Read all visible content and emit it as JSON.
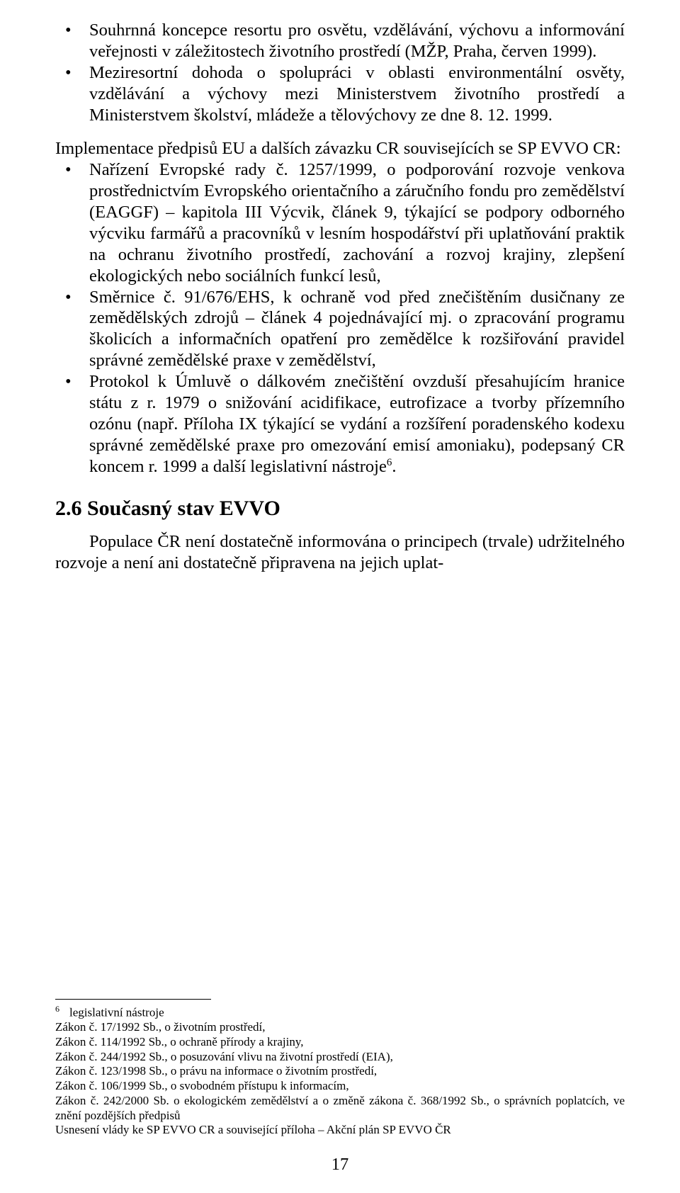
{
  "top_bullets": [
    "Souhrnná koncepce resortu pro osvětu, vzdělávání, výchovu a informování veřejnosti v záležitostech životního prostředí (MŽP, Praha, červen 1999).",
    "Meziresortní dohoda o spolupráci v oblasti environmentální osvěty, vzdělávání a výchovy mezi Ministerstvem životního prostředí a Ministerstvem školství, mládeže a tělovýchovy ze dne 8. 12. 1999."
  ],
  "intro_para": "Implementace předpisů EU a dalších závazku CR souvisejících se SP EVVO CR:",
  "eu_bullets": {
    "b1": "Nařízení Evropské rady č. 1257/1999, o podporování rozvoje venkova prostřednictvím Evropského orientačního a záručního fondu pro zemědělství (EAGGF) – kapitola III Výcvik, článek 9, týkající se podpory odborného výcviku farmářů a pracovníků v lesním hospodářství při uplatňování praktik na ochranu životního prostředí, zachování a rozvoj krajiny, zlepšení ekologických nebo sociálních funkcí lesů,",
    "b2": "Směrnice č. 91/676/EHS, k ochraně vod před znečištěním dusičnany ze zemědělských zdrojů – článek 4 pojednávající mj. o zpracování programu školicích a informačních opatření pro zemědělce k rozšiřování pravidel správné zemědělské praxe v zemědělství,",
    "b3_part1": "Protokol k Úmluvě o dálkovém znečištění ovzduší přesahujícím hranice státu z r. 1979 o snižování acidifikace, eutrofizace a tvorby přízemního ozónu (např. Příloha IX týkající se vydání a rozšíření poradenského kodexu správné zemědělské praxe pro omezování emisí amoniaku), podepsaný CR koncem r. 1999 a další legislativní nástroje",
    "b3_sup": "6",
    "b3_part2": "."
  },
  "section_heading": "2.6 Současný stav EVVO",
  "body_para": "Populace ČR není dostatečně informována o principech (trvale) udržitelného rozvoje a není ani dostatečně připravena na jejich uplat-",
  "footnote": {
    "marker": "6",
    "label": "legislativní nástroje",
    "lines": [
      "Zákon č. 17/1992 Sb., o životním prostředí,",
      "Zákon č. 114/1992 Sb., o ochraně přírody a krajiny,",
      "Zákon č. 244/1992 Sb., o posuzování vlivu na životní prostředí (EIA),",
      "Zákon č. 123/1998 Sb., o právu na informace o životním prostředí,",
      "Zákon č. 106/1999 Sb., o svobodném přístupu k informacím,",
      "Zákon č. 242/2000 Sb. o ekologickém zemědělství a o změně zákona č. 368/1992 Sb., o správních poplatcích, ve znění pozdějších předpisů",
      "Usnesení vlády ke SP EVVO CR a související příloha – Akční plán SP EVVO ČR"
    ]
  },
  "page_number": "17"
}
